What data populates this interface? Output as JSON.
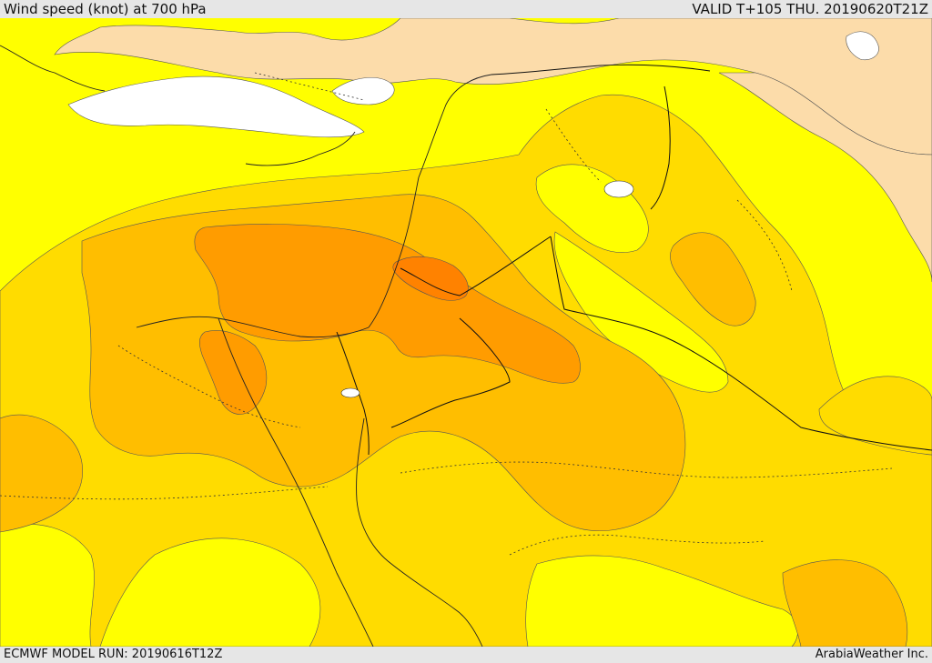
{
  "header": {
    "title": "Wind speed (knot) at 700 hPa",
    "valid": "VALID T+105 THU. 20190620T21Z"
  },
  "footer": {
    "model_run": "ECMWF MODEL RUN: 20190616T12Z",
    "credit": "ArabiaWeather Inc."
  },
  "colors": {
    "calm_white": "#ffffff",
    "light_tan": "#fcdcaa",
    "yellow": "#ffff00",
    "gold": "#ffdc00",
    "amber": "#ffbe00",
    "orange": "#ff9c00",
    "dark_orange": "#ff8200"
  }
}
